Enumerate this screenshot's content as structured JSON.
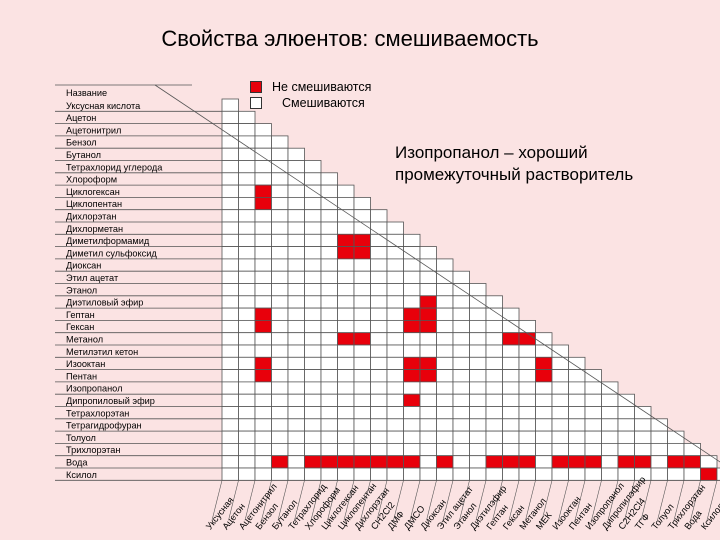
{
  "title": "Свойства элюентов: смешиваемость",
  "legend": {
    "immiscible": "Не смешиваются",
    "miscible": "Смешиваются"
  },
  "note": "Изопропанол – хороший промежуточный растворитель",
  "colors": {
    "immiscible": "#e8000b",
    "miscible": "#ffffff",
    "background": "#fbe3e3"
  },
  "header_label": "Название",
  "solvents": [
    "Уксусная кислота",
    "Ацетон",
    "Ацетонитрил",
    "Бензол",
    "Бутанол",
    "Тетрахлорид углерода",
    "Хлороформ",
    "Циклогексан",
    "Циклопентан",
    "Дихлорэтан",
    "Дихлорметан",
    "Диметилформамид",
    "Диметил сульфоксид",
    "Диоксан",
    "Этил ацетат",
    "Этанол",
    "Диэтиловый эфир",
    "Гептан",
    "Гексан",
    "Метанол",
    "Метилэтил кетон",
    "Изооктан",
    "Пентан",
    "Изопропанол",
    "Дипропиловый эфир",
    "Тетрахлорэтан",
    "Тетрагидрофуран",
    "Толуол",
    "Трихлорэтан",
    "Вода",
    "Ксилол"
  ],
  "column_labels": [
    "Уксусная",
    "Ацетон",
    "Ацетонитрил",
    "Бензол",
    "Бутанол",
    "Тетрахлорид",
    "Хлороформ",
    "Циклогексан",
    "Циклопентан",
    "Дихлорэтан",
    "CH2Cl2",
    "ДМФ",
    "ДМСО",
    "Диоксан",
    "Этил ацетат",
    "Этанол",
    "Диэтилэфир",
    "Гептан",
    "Гексан",
    "Метанол",
    "МЕК",
    "Изооктан",
    "Пентан",
    "Изопропанол",
    "Дипропилэфир",
    "C2H2Cl4",
    "ТГФ",
    "Толуол",
    "Трихлорэтан",
    "Вода",
    "Ксилол"
  ],
  "immiscible_pairs": [
    [
      7,
      2
    ],
    [
      8,
      2
    ],
    [
      11,
      7
    ],
    [
      11,
      8
    ],
    [
      12,
      7
    ],
    [
      12,
      8
    ],
    [
      16,
      12
    ],
    [
      17,
      2
    ],
    [
      17,
      11
    ],
    [
      17,
      12
    ],
    [
      18,
      2
    ],
    [
      18,
      11
    ],
    [
      18,
      12
    ],
    [
      19,
      7
    ],
    [
      19,
      8
    ],
    [
      19,
      17
    ],
    [
      19,
      18
    ],
    [
      21,
      2
    ],
    [
      21,
      11
    ],
    [
      21,
      12
    ],
    [
      21,
      19
    ],
    [
      22,
      2
    ],
    [
      22,
      11
    ],
    [
      22,
      12
    ],
    [
      22,
      19
    ],
    [
      24,
      11
    ],
    [
      29,
      3
    ],
    [
      29,
      5
    ],
    [
      29,
      6
    ],
    [
      29,
      7
    ],
    [
      29,
      8
    ],
    [
      29,
      9
    ],
    [
      29,
      10
    ],
    [
      29,
      11
    ],
    [
      29,
      13
    ],
    [
      29,
      16
    ],
    [
      29,
      17
    ],
    [
      29,
      18
    ],
    [
      29,
      20
    ],
    [
      29,
      21
    ],
    [
      29,
      22
    ],
    [
      29,
      24
    ],
    [
      29,
      25
    ],
    [
      29,
      27
    ],
    [
      29,
      28
    ],
    [
      30,
      29
    ]
  ]
}
